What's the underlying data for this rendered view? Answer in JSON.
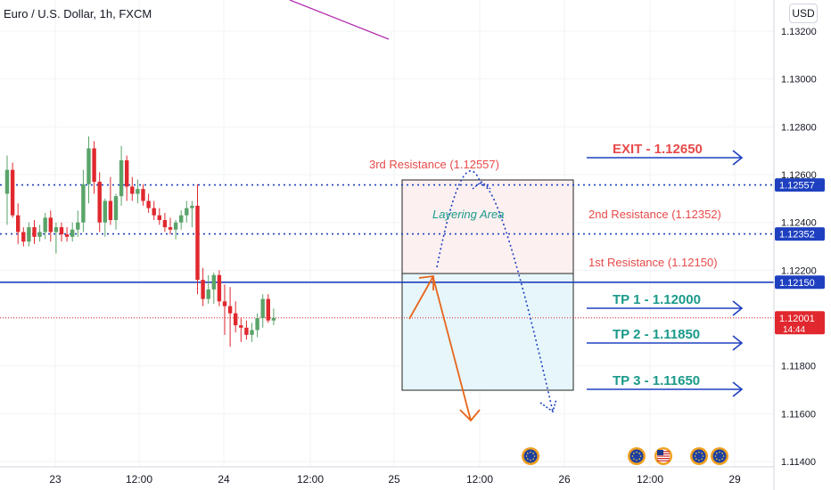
{
  "header": {
    "symbol_title": "Euro / U.S. Dollar, 1h, FXCM",
    "currency": "USD"
  },
  "colors": {
    "up": "#5aa469",
    "down": "#e0282e",
    "blue_line": "#1e40c0",
    "resistance_text": "#e84a4a",
    "tp_text": "#1a9a8a",
    "orange": "#e8651a",
    "purple": "#b030b0",
    "layer_fill": "#fdf0f0",
    "tp_fill": "#e6f6fb",
    "price_tag_blue": "#1e40c0",
    "price_tag_red": "#e0282e"
  },
  "price_axis": {
    "ticks": [
      "1.13200",
      "1.13000",
      "1.12800",
      "1.12600",
      "1.12400",
      "1.12200",
      "1.12000",
      "1.11800",
      "1.11600",
      "1.11400"
    ],
    "tags": [
      {
        "text": "1.12557",
        "kind": "blue"
      },
      {
        "text": "1.12352",
        "kind": "blue"
      },
      {
        "text": "1.12150",
        "kind": "blue"
      },
      {
        "text": "1.12001",
        "kind": "red"
      }
    ],
    "countdown": "14:44"
  },
  "time_axis": {
    "ticks": [
      "23",
      "12:00",
      "24",
      "12:00",
      "25",
      "12:00",
      "26",
      "12:00",
      "29"
    ]
  },
  "annotations": {
    "resistance_3": "3rd Resistance (1.12557)",
    "resistance_2": "2nd Resistance (1.12352)",
    "resistance_1": "1st Resistance (1.12150)",
    "layering": "Layering Area",
    "exit": "EXIT - 1.12650",
    "tp1": "TP 1 - 1.12000",
    "tp2": "TP 2 - 1.11850",
    "tp3": "TP 3 - 1.11650"
  },
  "icons": {
    "event_icons": [
      "eu-flag-icon",
      "eu-flag-icon",
      "us-flag-icon",
      "eu-flag-icon",
      "eu-flag-icon"
    ]
  },
  "chart_data": {
    "type": "candlestick",
    "title": "Euro / U.S. Dollar, 1h, FXCM",
    "ylim": [
      1.1135,
      1.1335
    ],
    "levels": {
      "resistance_3": 1.12557,
      "resistance_2": 1.12352,
      "resistance_1": 1.1215,
      "last_price": 1.12001
    },
    "targets": {
      "exit": 1.1265,
      "tp1": 1.12,
      "tp2": 1.1185,
      "tp3": 1.1165
    },
    "candles": [
      {
        "o": 1.1252,
        "h": 1.1268,
        "l": 1.1239,
        "c": 1.1262
      },
      {
        "o": 1.1262,
        "h": 1.1265,
        "l": 1.1242,
        "c": 1.1243
      },
      {
        "o": 1.1243,
        "h": 1.1248,
        "l": 1.1231,
        "c": 1.1236
      },
      {
        "o": 1.1236,
        "h": 1.1238,
        "l": 1.123,
        "c": 1.1232
      },
      {
        "o": 1.1232,
        "h": 1.124,
        "l": 1.123,
        "c": 1.1238
      },
      {
        "o": 1.1238,
        "h": 1.1241,
        "l": 1.1231,
        "c": 1.1234
      },
      {
        "o": 1.1234,
        "h": 1.1239,
        "l": 1.1232,
        "c": 1.1236
      },
      {
        "o": 1.1236,
        "h": 1.1244,
        "l": 1.1233,
        "c": 1.1242
      },
      {
        "o": 1.1242,
        "h": 1.1245,
        "l": 1.1232,
        "c": 1.1236
      },
      {
        "o": 1.1236,
        "h": 1.124,
        "l": 1.1227,
        "c": 1.1238
      },
      {
        "o": 1.1238,
        "h": 1.124,
        "l": 1.1232,
        "c": 1.1235
      },
      {
        "o": 1.1235,
        "h": 1.1238,
        "l": 1.1232,
        "c": 1.1234
      },
      {
        "o": 1.1234,
        "h": 1.124,
        "l": 1.1232,
        "c": 1.1237
      },
      {
        "o": 1.1237,
        "h": 1.1245,
        "l": 1.1234,
        "c": 1.124
      },
      {
        "o": 1.124,
        "h": 1.1262,
        "l": 1.1236,
        "c": 1.1256
      },
      {
        "o": 1.1256,
        "h": 1.1276,
        "l": 1.1248,
        "c": 1.1271
      },
      {
        "o": 1.1271,
        "h": 1.1274,
        "l": 1.1252,
        "c": 1.1257
      },
      {
        "o": 1.1257,
        "h": 1.1261,
        "l": 1.1236,
        "c": 1.124
      },
      {
        "o": 1.124,
        "h": 1.125,
        "l": 1.1234,
        "c": 1.1249
      },
      {
        "o": 1.1249,
        "h": 1.1259,
        "l": 1.1239,
        "c": 1.1241
      },
      {
        "o": 1.1241,
        "h": 1.1252,
        "l": 1.1237,
        "c": 1.1251
      },
      {
        "o": 1.1251,
        "h": 1.1272,
        "l": 1.1247,
        "c": 1.1266
      },
      {
        "o": 1.1266,
        "h": 1.1268,
        "l": 1.1249,
        "c": 1.1255
      },
      {
        "o": 1.1255,
        "h": 1.1259,
        "l": 1.1249,
        "c": 1.1252
      },
      {
        "o": 1.1252,
        "h": 1.1258,
        "l": 1.1248,
        "c": 1.1254
      },
      {
        "o": 1.1254,
        "h": 1.1256,
        "l": 1.1247,
        "c": 1.1249
      },
      {
        "o": 1.1249,
        "h": 1.1252,
        "l": 1.1244,
        "c": 1.1246
      },
      {
        "o": 1.1246,
        "h": 1.1249,
        "l": 1.1241,
        "c": 1.1243
      },
      {
        "o": 1.1243,
        "h": 1.1246,
        "l": 1.1239,
        "c": 1.1241
      },
      {
        "o": 1.1241,
        "h": 1.1244,
        "l": 1.1236,
        "c": 1.1238
      },
      {
        "o": 1.1238,
        "h": 1.1242,
        "l": 1.1235,
        "c": 1.1237
      },
      {
        "o": 1.1237,
        "h": 1.1241,
        "l": 1.1233,
        "c": 1.124
      },
      {
        "o": 1.124,
        "h": 1.1245,
        "l": 1.1237,
        "c": 1.1243
      },
      {
        "o": 1.1243,
        "h": 1.1249,
        "l": 1.124,
        "c": 1.1246
      },
      {
        "o": 1.1246,
        "h": 1.1249,
        "l": 1.1238,
        "c": 1.1247
      },
      {
        "o": 1.1247,
        "h": 1.1256,
        "l": 1.121,
        "c": 1.1216
      },
      {
        "o": 1.1216,
        "h": 1.1221,
        "l": 1.1205,
        "c": 1.1208
      },
      {
        "o": 1.1208,
        "h": 1.1218,
        "l": 1.1206,
        "c": 1.1212
      },
      {
        "o": 1.1212,
        "h": 1.1219,
        "l": 1.1206,
        "c": 1.1218
      },
      {
        "o": 1.1218,
        "h": 1.122,
        "l": 1.1205,
        "c": 1.1207
      },
      {
        "o": 1.1207,
        "h": 1.1214,
        "l": 1.1193,
        "c": 1.1205
      },
      {
        "o": 1.1205,
        "h": 1.1213,
        "l": 1.1188,
        "c": 1.1202
      },
      {
        "o": 1.1202,
        "h": 1.1207,
        "l": 1.1194,
        "c": 1.1197
      },
      {
        "o": 1.1197,
        "h": 1.12,
        "l": 1.119,
        "c": 1.1196
      },
      {
        "o": 1.1196,
        "h": 1.1199,
        "l": 1.1191,
        "c": 1.1193
      },
      {
        "o": 1.1193,
        "h": 1.1198,
        "l": 1.119,
        "c": 1.1195
      },
      {
        "o": 1.1195,
        "h": 1.1202,
        "l": 1.1192,
        "c": 1.12
      },
      {
        "o": 1.12,
        "h": 1.121,
        "l": 1.1196,
        "c": 1.1208
      },
      {
        "o": 1.1208,
        "h": 1.121,
        "l": 1.1198,
        "c": 1.1199
      },
      {
        "o": 1.1199,
        "h": 1.1204,
        "l": 1.1197,
        "c": 1.12001
      }
    ],
    "trendline": {
      "from_price": 1.134,
      "to_price": 1.1329
    }
  }
}
